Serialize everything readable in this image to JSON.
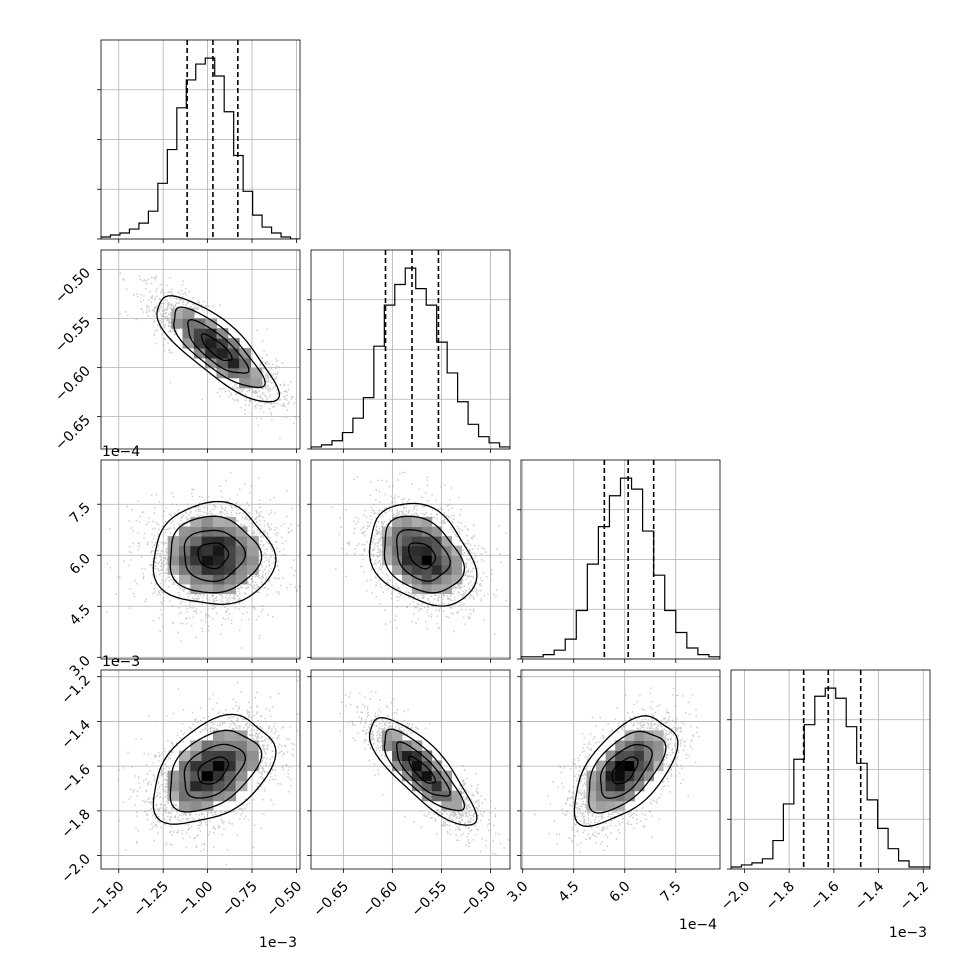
{
  "chart_data": {
    "type": "corner",
    "grid": true,
    "parameters": [
      {
        "index": 0,
        "range": [
          -0.0016,
          -0.00048
        ],
        "ticks": [
          -0.0015,
          -0.00125,
          -0.001,
          -0.00075,
          -0.0005
        ],
        "tick_labels": [
          "−1.50",
          "−1.25",
          "−1.00",
          "−0.75",
          "−0.50"
        ],
        "offset_text": "1e−3",
        "quantiles": [
          -0.001115,
          -0.00097,
          -0.00083
        ],
        "histogram": [
          1,
          2,
          3,
          5,
          8,
          14,
          28,
          45,
          66,
          80,
          88,
          91,
          82,
          64,
          42,
          24,
          12,
          6,
          3,
          1,
          0
        ]
      },
      {
        "index": 1,
        "range": [
          -0.000683,
          -0.00048
        ],
        "ticks": [
          -0.00065,
          -0.0006,
          -0.00055,
          -0.0005
        ],
        "tick_labels": [
          "−0.65",
          "−0.60",
          "−0.55",
          "−0.50"
        ],
        "offset_text": "1e−3",
        "quantiles": [
          -0.000607,
          -0.00058,
          -0.000553
        ],
        "histogram": [
          1,
          2,
          4,
          8,
          15,
          25,
          50,
          70,
          80,
          88,
          78,
          70,
          52,
          37,
          23,
          12,
          6,
          3,
          1
        ]
      },
      {
        "index": 2,
        "range": [
          0.000295,
          0.00088
        ],
        "ticks": [
          0.0003,
          0.00045,
          0.0006,
          0.00075
        ],
        "tick_labels": [
          "3.0",
          "4.5",
          "6.0",
          "7.5"
        ],
        "offset_text": "1e−4",
        "quantiles": [
          0.00054,
          0.00061,
          0.000685
        ],
        "histogram": [
          1,
          1,
          2,
          4,
          9,
          22,
          43,
          60,
          74,
          82,
          77,
          58,
          38,
          22,
          12,
          5,
          2,
          1
        ]
      },
      {
        "index": 3,
        "range": [
          -0.00206,
          -0.00117
        ],
        "ticks": [
          -0.002,
          -0.0018,
          -0.0016,
          -0.0014,
          -0.0012
        ],
        "tick_labels": [
          "−2.0",
          "−1.8",
          "−1.6",
          "−1.4",
          "−1.2"
        ],
        "offset_text": "1e−3",
        "quantiles": [
          -0.001735,
          -0.001625,
          -0.00148
        ],
        "histogram": [
          1,
          2,
          3,
          5,
          14,
          32,
          54,
          71,
          85,
          89,
          84,
          70,
          52,
          34,
          20,
          10,
          4,
          1,
          1
        ]
      }
    ],
    "pairs": [
      {
        "x": 0,
        "y": 1,
        "mean": [
          -0.00095,
          -0.00058
        ],
        "std": [
          0.00017,
          2.7e-05
        ],
        "rho": -0.8
      },
      {
        "x": 0,
        "y": 2,
        "mean": [
          -0.00097,
          0.0006
        ],
        "std": [
          0.00017,
          7.5e-05
        ],
        "rho": 0.0
      },
      {
        "x": 1,
        "y": 2,
        "mean": [
          -0.00057,
          0.0006
        ],
        "std": [
          2.7e-05,
          7.5e-05
        ],
        "rho": -0.3
      },
      {
        "x": 0,
        "y": 3,
        "mean": [
          -0.00097,
          -0.00162
        ],
        "std": [
          0.00017,
          0.00012
        ],
        "rho": 0.4
      },
      {
        "x": 1,
        "y": 3,
        "mean": [
          -0.00057,
          -0.00162
        ],
        "std": [
          2.7e-05,
          0.00012
        ],
        "rho": -0.8
      },
      {
        "x": 2,
        "y": 3,
        "mean": [
          0.0006,
          -0.00162
        ],
        "std": [
          7.5e-05,
          0.00012
        ],
        "rho": 0.55
      }
    ]
  }
}
